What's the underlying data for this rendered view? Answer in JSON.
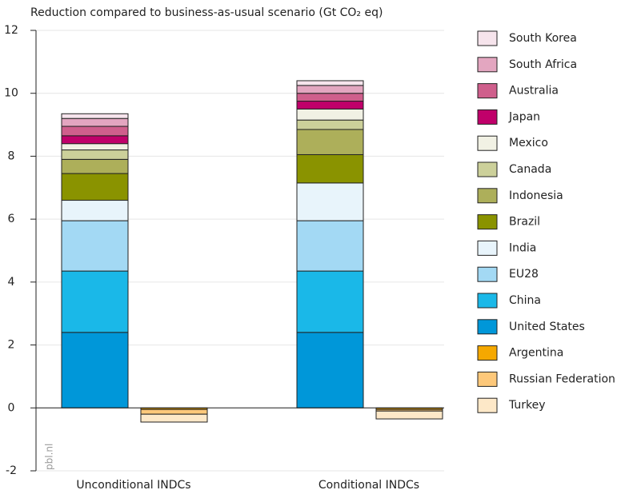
{
  "chart_data": {
    "type": "stacked-bar",
    "title": "Reduction compared to business-as-usual scenario (Gt CO₂ eq)",
    "watermark": "pbl.nl",
    "categories": [
      "Unconditional INDCs",
      "Conditional INDCs"
    ],
    "ylim": [
      -2,
      12
    ],
    "yticks": [
      -2,
      0,
      2,
      4,
      6,
      8,
      10,
      12
    ],
    "grid": true,
    "series": [
      {
        "name": "South Korea",
        "color": "#f6e4ec",
        "values": [
          0.15,
          0.15
        ]
      },
      {
        "name": "South Africa",
        "color": "#e3a6c0",
        "values": [
          0.25,
          0.25
        ]
      },
      {
        "name": "Australia",
        "color": "#cf5f8c",
        "values": [
          0.3,
          0.25
        ]
      },
      {
        "name": "Japan",
        "color": "#c0006a",
        "values": [
          0.25,
          0.25
        ]
      },
      {
        "name": "Mexico",
        "color": "#f1f1e4",
        "values": [
          0.2,
          0.35
        ]
      },
      {
        "name": "Canada",
        "color": "#ccd09a",
        "values": [
          0.3,
          0.3
        ]
      },
      {
        "name": "Indonesia",
        "color": "#adaf5a",
        "values": [
          0.45,
          0.8
        ]
      },
      {
        "name": "Brazil",
        "color": "#8a9300",
        "values": [
          0.85,
          0.9
        ]
      },
      {
        "name": "India",
        "color": "#e8f4fb",
        "values": [
          0.65,
          1.2
        ]
      },
      {
        "name": "EU28",
        "color": "#a3d9f4",
        "values": [
          1.6,
          1.6
        ]
      },
      {
        "name": "China",
        "color": "#1ab8e8",
        "values": [
          1.95,
          1.95
        ]
      },
      {
        "name": "United States",
        "color": "#0097d9",
        "values": [
          2.4,
          2.4
        ]
      },
      {
        "name": "Argentina",
        "color": "#f5a800",
        "values": [
          -0.05,
          -0.05
        ]
      },
      {
        "name": "Russian Federation",
        "color": "#fdc87a",
        "values": [
          -0.15,
          -0.05
        ]
      },
      {
        "name": "Turkey",
        "color": "#fde8c8",
        "values": [
          -0.25,
          -0.25
        ]
      }
    ]
  }
}
